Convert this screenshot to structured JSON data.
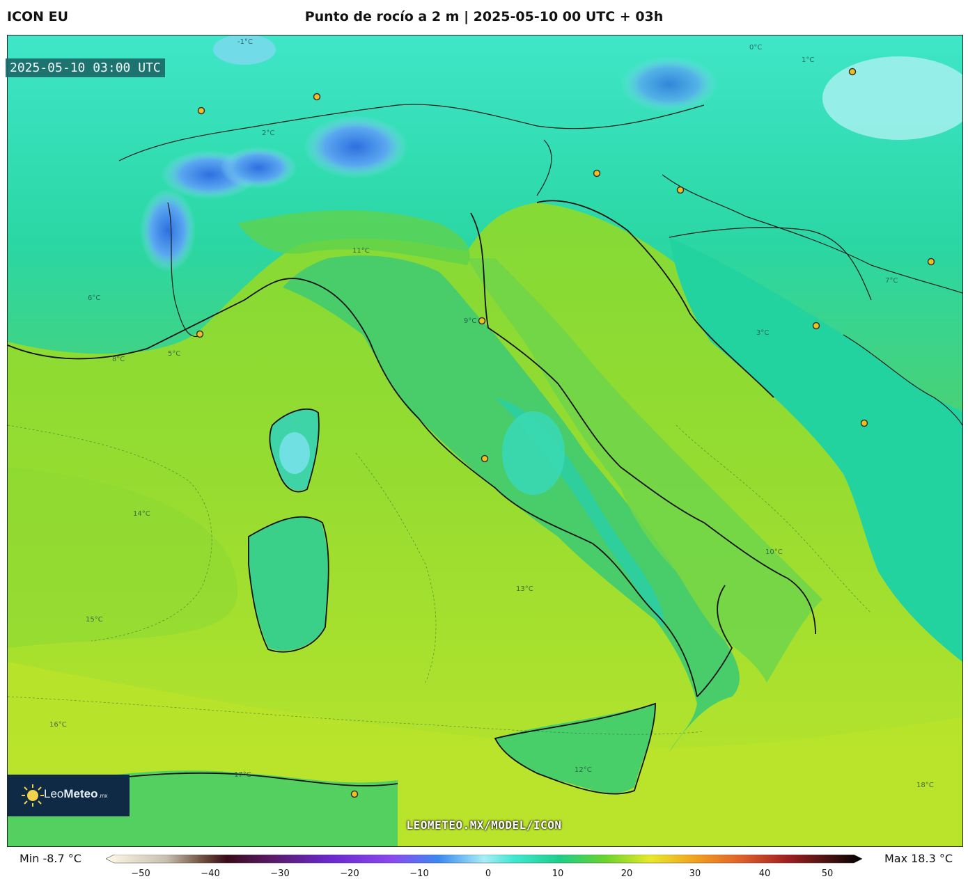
{
  "header": {
    "model": "ICON EU",
    "title": "Punto de rocío a 2 m | 2025-05-10 00 UTC + 03h"
  },
  "map": {
    "timestamp": "2025-05-10 03:00 UTC",
    "watermark": "LEOMETEO.MX/MODEL/ICON",
    "isotherm_labels": [
      "-1°C",
      "0°C",
      "1°C",
      "2°C",
      "3°C",
      "5°C",
      "6°C",
      "7°C",
      "8°C",
      "9°C",
      "10°C",
      "11°C",
      "12°C",
      "13°C",
      "14°C",
      "15°C",
      "16°C",
      "17°C",
      "18°C"
    ]
  },
  "logo": {
    "name_light": "Leo",
    "name_bold": "Meteo",
    "suffix": ".mx"
  },
  "colorbar": {
    "min_label": "Min -8.7 °C",
    "max_label": "Max 18.3 °C",
    "ticks": [
      "−50",
      "−40",
      "−30",
      "−20",
      "−10",
      "0",
      "10",
      "20",
      "30",
      "40",
      "50"
    ]
  },
  "colors": {
    "cold_blue": "#3a7be0",
    "cyan": "#3ee8d0",
    "teal": "#1dcf9a",
    "green": "#5cd23c",
    "yellow_green": "#b8e22a",
    "coast": "#111111"
  }
}
